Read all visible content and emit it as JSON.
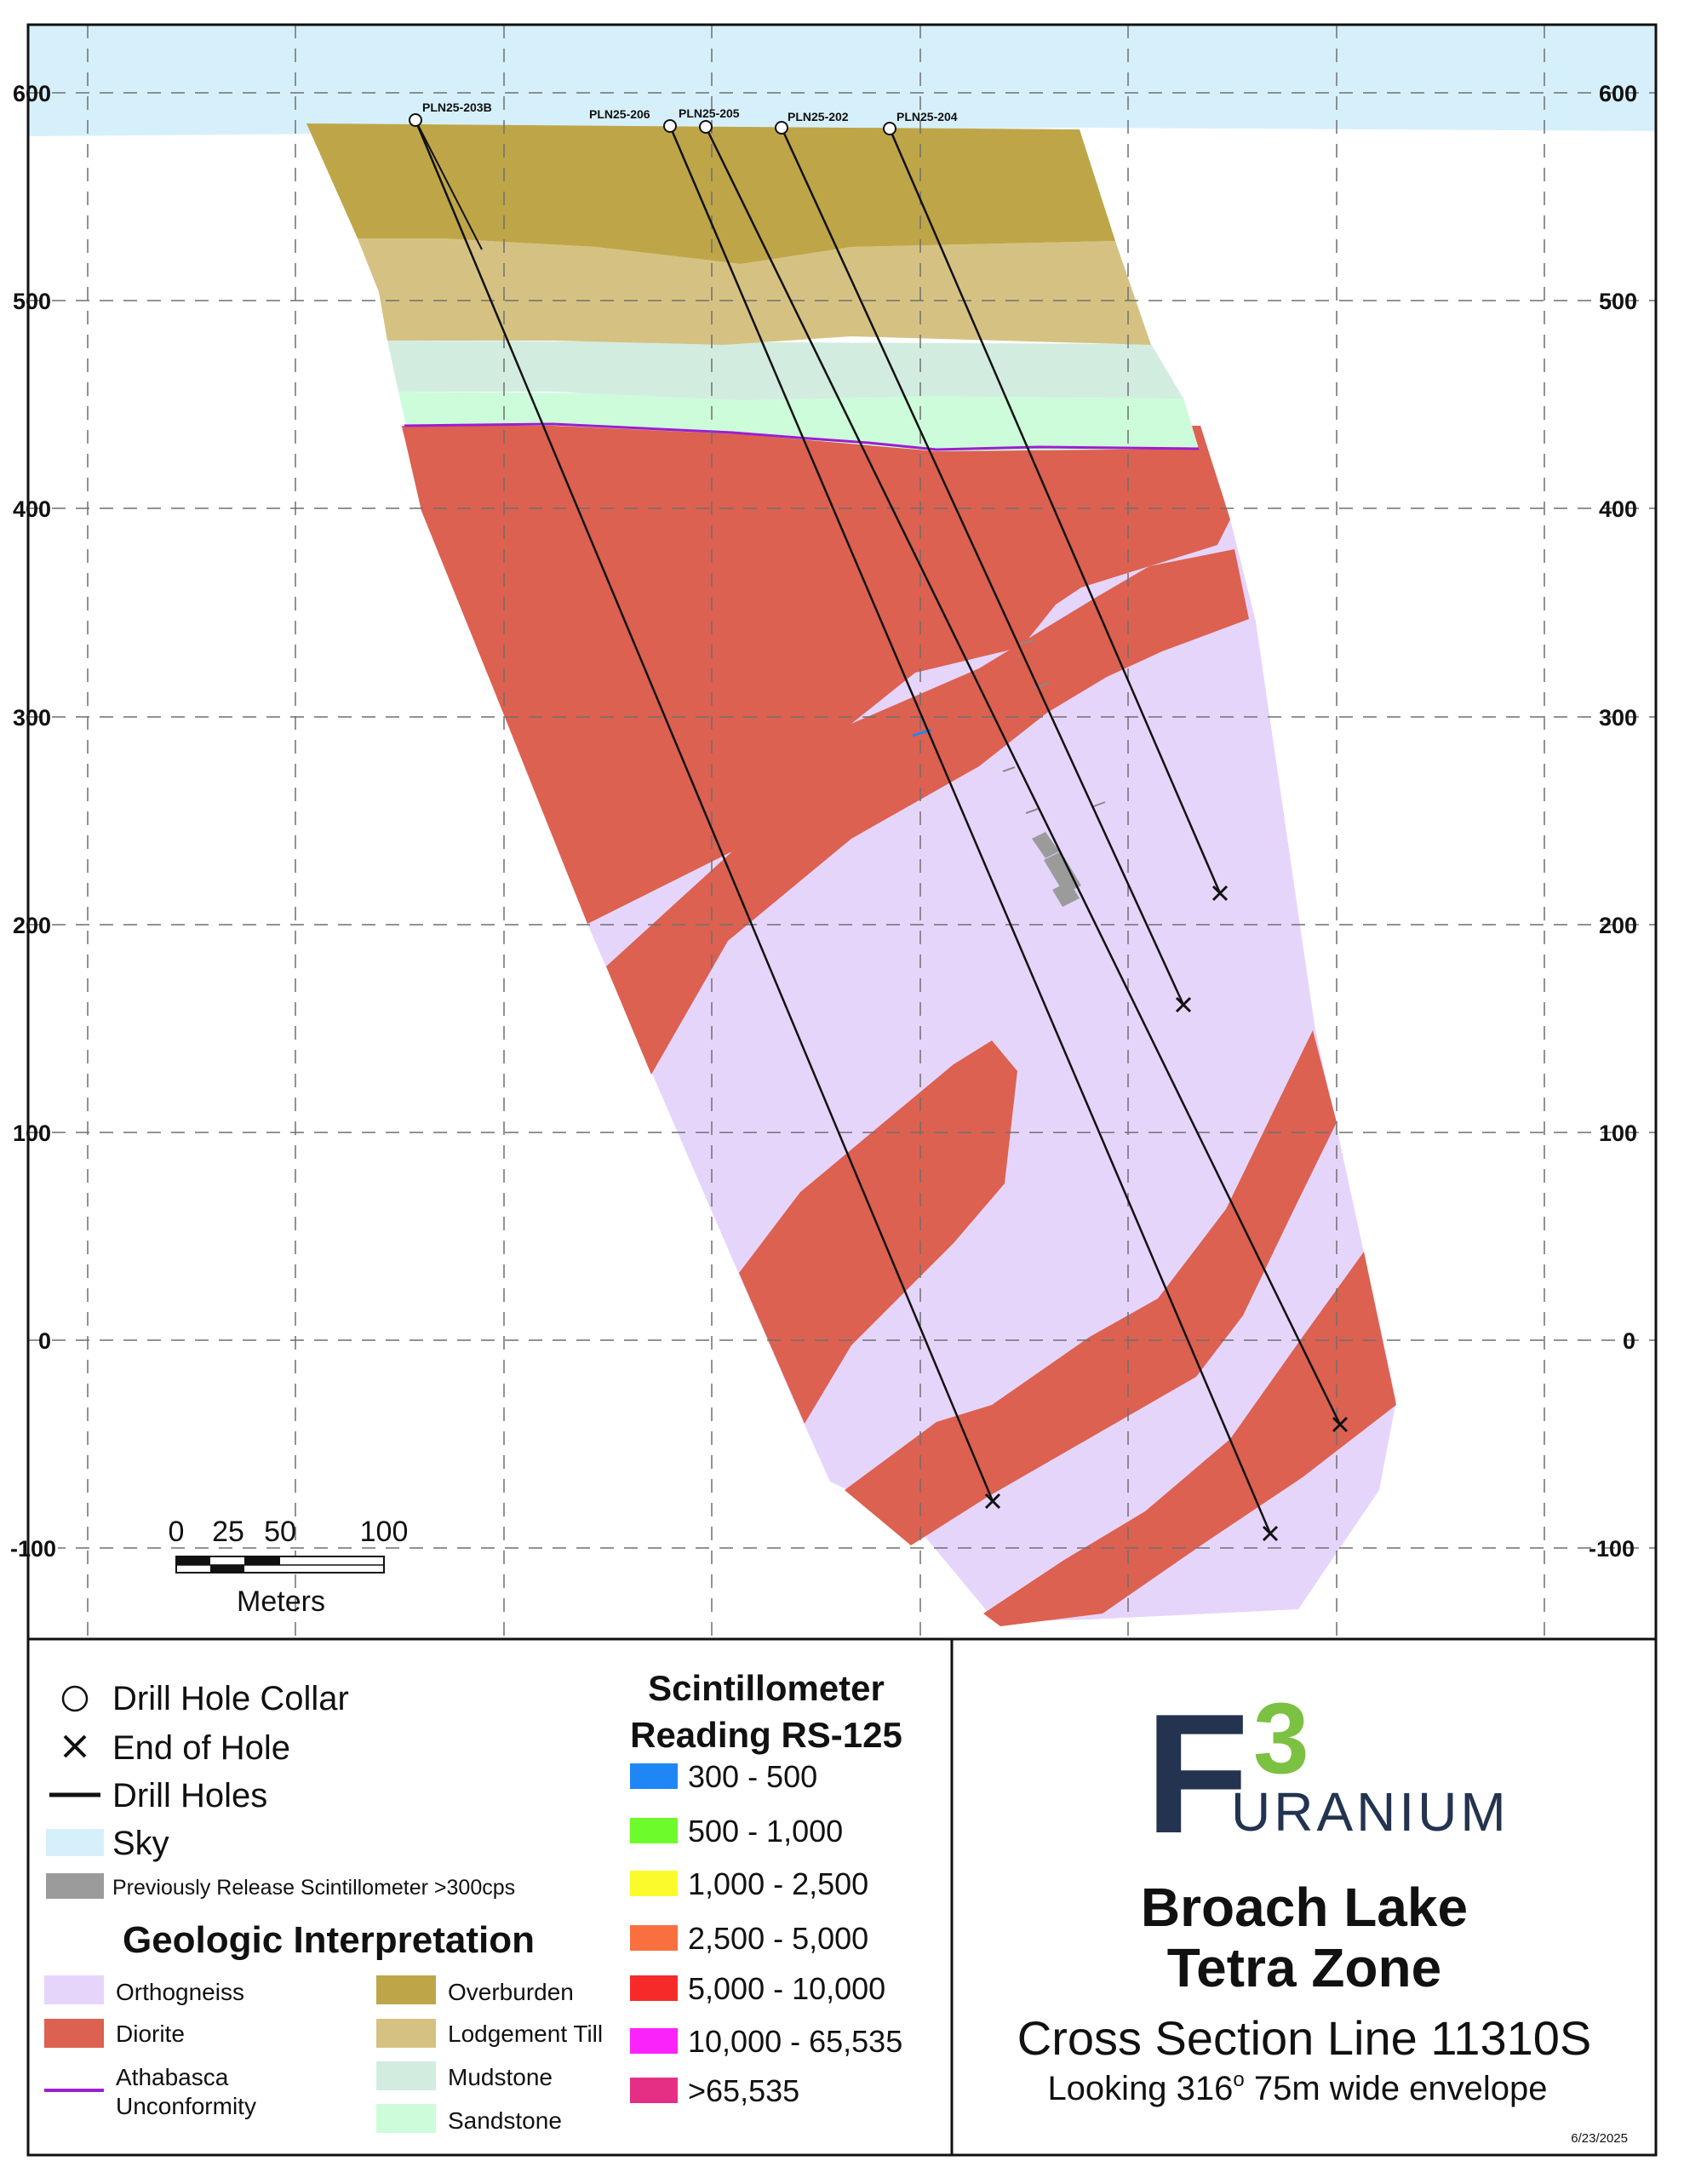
{
  "map": {
    "y_axis_labels": [
      "600",
      "500",
      "400",
      "300",
      "200",
      "100",
      "0",
      "-100"
    ],
    "drill_holes": [
      {
        "id": "PLN25-203B"
      },
      {
        "id": "PLN25-206"
      },
      {
        "id": "PLN25-205"
      },
      {
        "id": "PLN25-202"
      },
      {
        "id": "PLN25-204"
      }
    ],
    "scale_bar": {
      "ticks": [
        "0",
        "25",
        "50",
        "100"
      ],
      "unit": "Meters"
    }
  },
  "legend": {
    "symbols": [
      {
        "label": "Drill Hole Collar",
        "icon": "circle"
      },
      {
        "label": "End of Hole",
        "icon": "x-mark"
      },
      {
        "label": "Drill Holes",
        "icon": "line"
      },
      {
        "label": "Sky",
        "color": "#d6f0fb"
      },
      {
        "label": "Previously Release Scintillometer >300cps",
        "color": "#9b9b9b"
      }
    ],
    "geologic_title": "Geologic Interpretation",
    "geologic_units": [
      {
        "label": "Orthogneiss",
        "color": "#e6d5fb"
      },
      {
        "label": "Diorite",
        "color": "#dc6150"
      },
      {
        "label": "Athabasca Unconformity",
        "color": "#9d1ed0"
      },
      {
        "label": "Overburden",
        "color": "#bea648"
      },
      {
        "label": "Lodgement Till",
        "color": "#d5c283"
      },
      {
        "label": "Mudstone",
        "color": "#d2ede0"
      },
      {
        "label": "Sandstone",
        "color": "#cdfcdb"
      }
    ],
    "scint_title_line1": "Scintillometer",
    "scint_title_line2": "Reading RS-125",
    "scint_ranges": [
      {
        "label": "300 - 500",
        "color": "#1f87f5"
      },
      {
        "label": "500 - 1,000",
        "color": "#6dfb2b"
      },
      {
        "label": "1,000 - 2,500",
        "color": "#fbfb2b"
      },
      {
        "label": "2,500 - 5,000",
        "color": "#f8703f"
      },
      {
        "label": "5,000 - 10,000",
        "color": "#f72a2a"
      },
      {
        "label": "10,000 - 65,535",
        "color": "#fa24fa"
      },
      {
        "label": ">65,535",
        "color": "#e52f85"
      }
    ]
  },
  "brand": {
    "logo_main": "F",
    "logo_superscript": "3",
    "logo_wordmark": "URANIUM",
    "logo_color": "#233350",
    "logo_accent": "#7bc142"
  },
  "title": {
    "line1": "Broach Lake",
    "line2": "Tetra Zone",
    "line3": "Cross Section Line 11310S",
    "line4_pre": "Looking 316",
    "line4_sup": "o",
    "line4_post": " 75m wide envelope",
    "date": "6/23/2025"
  }
}
